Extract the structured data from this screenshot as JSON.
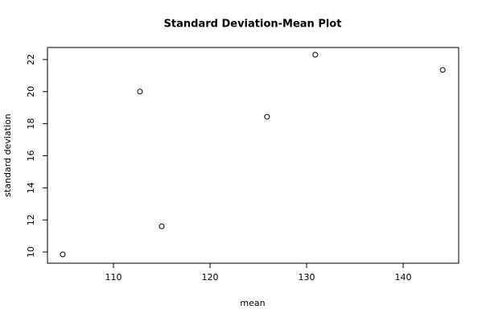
{
  "chart_data": {
    "type": "scatter",
    "title": "Standard Deviation-Mean Plot",
    "x_label": "mean",
    "y_label": "standard deviation",
    "x": [
      104.75,
      112.75,
      115.0,
      125.9,
      130.9,
      144.1
    ],
    "values": [
      9.85,
      20.0,
      11.6,
      18.43,
      22.3,
      21.35
    ],
    "color": "#000000",
    "xlim": [
      103.17,
      145.75
    ],
    "xticks": [
      110,
      120,
      130,
      140
    ],
    "ylim": [
      9.3,
      22.75
    ],
    "yticks": [
      10,
      12,
      14,
      16,
      18,
      20,
      22
    ]
  }
}
